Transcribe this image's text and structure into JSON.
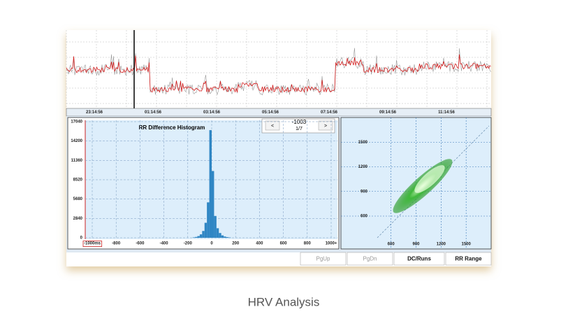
{
  "trace": {
    "time_labels": [
      "23:14:56",
      "01:14:56",
      "03:14:56",
      "05:14:56",
      "07:14:56",
      "09:14:56",
      "11:14:56"
    ]
  },
  "histogram": {
    "title": "RR Difference Histogram",
    "nav": {
      "prev": "<",
      "value": "-1003",
      "page": "1/7",
      "next": ">"
    },
    "bins": [
      -160,
      -140,
      -120,
      -100,
      -80,
      -60,
      -40,
      -20,
      0,
      20,
      40,
      60,
      80,
      100,
      120,
      140,
      160
    ],
    "counts": [
      60,
      120,
      250,
      500,
      1000,
      2200,
      5200,
      15800,
      9800,
      3200,
      1400,
      700,
      350,
      180,
      100,
      50
    ],
    "xlim": [
      -1000,
      1000
    ],
    "xticks": [
      {
        "value": -1000,
        "label": "-1000ms"
      },
      -800,
      -600,
      -400,
      -200,
      0,
      200,
      400,
      600,
      800,
      {
        "value": 1000,
        "label": "1000+"
      }
    ],
    "ylim": [
      0,
      17040
    ],
    "yticks": [
      0,
      2840,
      5680,
      8520,
      11360,
      14200,
      17040
    ]
  },
  "scatter": {
    "xlim": [
      0,
      1800
    ],
    "xticks": [
      600,
      900,
      1200,
      1500
    ],
    "ylim": [
      200,
      1800
    ],
    "yticks": [
      600,
      900,
      1200,
      1500
    ]
  },
  "buttons": [
    "PgUp",
    "PgDn",
    "DC/Runs",
    "RR Range"
  ],
  "caption": "HRV Analysis"
}
